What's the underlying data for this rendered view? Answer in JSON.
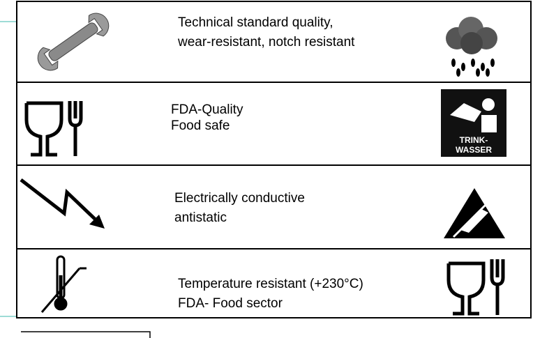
{
  "rows": [
    {
      "lines": [
        "Technical standard quality,",
        "wear-resistant, notch resistant"
      ]
    },
    {
      "lines": [
        "FDA-Quality",
        "Food safe"
      ],
      "badge": [
        "TRINK-",
        "WASSER"
      ]
    },
    {
      "lines": [
        "Electrically conductive",
        "antistatic"
      ]
    },
    {
      "lines": [
        "Temperature resistant (+230°C)",
        "FDA- Food sector"
      ]
    }
  ]
}
